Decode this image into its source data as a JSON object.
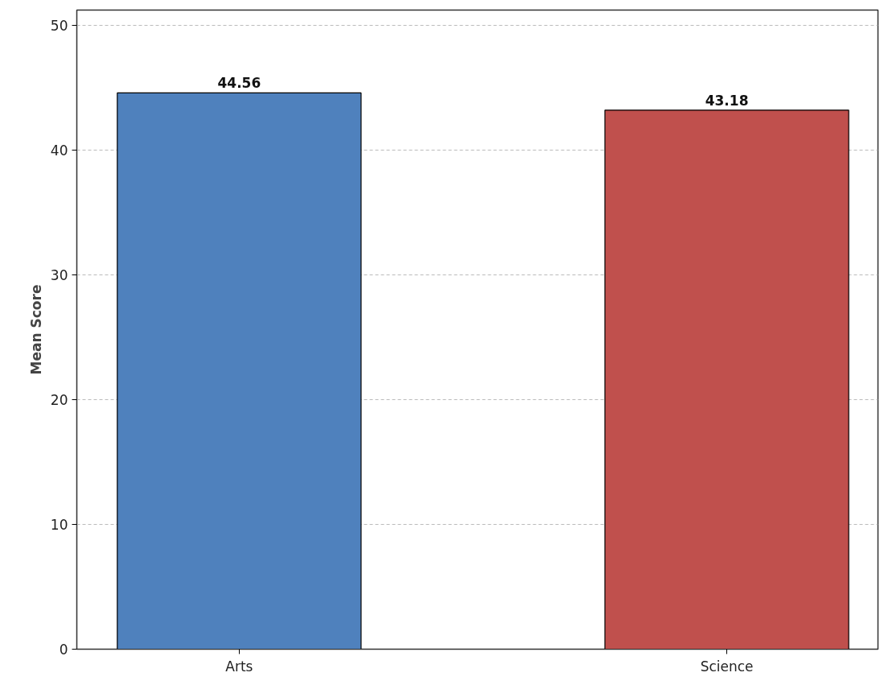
{
  "chart_data": {
    "type": "bar",
    "ylabel": "Mean Score",
    "categories": [
      "Arts",
      "Science"
    ],
    "values": [
      44.56,
      43.18
    ],
    "colors": [
      "#4f81bd",
      "#c0504d"
    ],
    "ylim": [
      0,
      51.2
    ],
    "yticks": [
      0,
      10,
      20,
      30,
      40,
      50
    ],
    "grid": "y",
    "data_labels": true
  }
}
